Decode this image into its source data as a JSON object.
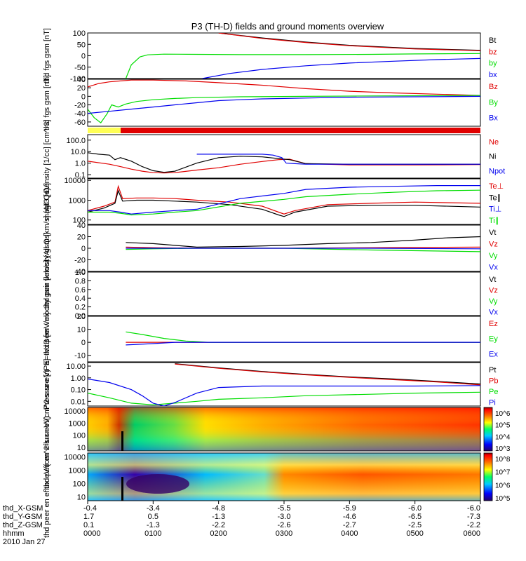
{
  "figure": {
    "title": "P3 (TH-D) fields and ground moments overview"
  },
  "colors": {
    "black": "#000000",
    "red": "#e00000",
    "green": "#00dd00",
    "blue": "#0000ee",
    "yellow": "#ffff55"
  },
  "chart_data": [
    {
      "type": "line",
      "panel": "fgs_gsm",
      "ylabel": "thd fgs gsm [nT]",
      "ylim": [
        -100,
        100
      ],
      "yticks": [
        "100",
        "50",
        "0",
        "-50",
        "-100"
      ],
      "series": [
        {
          "name": "Bt",
          "color": "black",
          "x": [
            120,
            160,
            200,
            240,
            300,
            360
          ],
          "y": [
            100,
            78,
            60,
            46,
            32,
            24
          ]
        },
        {
          "name": "bz",
          "color": "red",
          "x": [
            120,
            160,
            200,
            240,
            300,
            360
          ],
          "y": [
            100,
            76,
            58,
            44,
            30,
            22
          ]
        },
        {
          "name": "by",
          "color": "green",
          "x": [
            35,
            40,
            48,
            55,
            70,
            100,
            140,
            200,
            260,
            300,
            360
          ],
          "y": [
            -100,
            -40,
            -5,
            4,
            7,
            6,
            5,
            5,
            6,
            8,
            10
          ]
        },
        {
          "name": "bx",
          "color": "blue",
          "x": [
            105,
            130,
            160,
            200,
            240,
            280,
            320,
            360
          ],
          "y": [
            -100,
            -78,
            -60,
            -44,
            -32,
            -24,
            -17,
            -12
          ]
        }
      ]
    },
    {
      "type": "line",
      "panel": "fgs_gsm_zoom",
      "ylabel": "thd fgs gsm [nT]",
      "ylim": [
        -70,
        40
      ],
      "yticks": [
        "40",
        "20",
        "0",
        "-20",
        "-40",
        "-60"
      ],
      "series": [
        {
          "name": "Bz",
          "color": "red",
          "x": [
            0,
            10,
            20,
            30,
            40,
            60,
            90,
            120,
            160,
            200,
            240,
            280,
            320,
            360
          ],
          "y": [
            22,
            30,
            34,
            36,
            38,
            38,
            36,
            32,
            26,
            18,
            12,
            8,
            5,
            2
          ]
        },
        {
          "name": "By",
          "color": "green",
          "x": [
            0,
            6,
            12,
            18,
            22,
            28,
            35,
            45,
            60,
            80,
            100,
            140,
            200,
            260,
            360
          ],
          "y": [
            -30,
            -50,
            -62,
            -40,
            -20,
            -25,
            -18,
            -12,
            -8,
            -5,
            -3,
            -1,
            0,
            1,
            2
          ]
        },
        {
          "name": "Bx",
          "color": "blue",
          "x": [
            0,
            20,
            40,
            60,
            80,
            100,
            120,
            140,
            160,
            200,
            240,
            300,
            360
          ],
          "y": [
            -40,
            -35,
            -30,
            -25,
            -20,
            -15,
            -10,
            -8,
            -6,
            -4,
            -2,
            -1,
            0
          ]
        }
      ]
    },
    {
      "type": "line",
      "panel": "density",
      "ylabel": "Density [1/cc] [cm^-3]",
      "ylog": true,
      "ylim": [
        0.05,
        300
      ],
      "yticks": [
        "100.0",
        "10.0",
        "1.0",
        "0.1"
      ],
      "series": [
        {
          "name": "Ne",
          "color": "red",
          "x": [
            0,
            20,
            30,
            40,
            50,
            60,
            70,
            80,
            100,
            120,
            140,
            160,
            175,
            185,
            200,
            240,
            300,
            360
          ],
          "y": [
            1.5,
            0.8,
            0.5,
            0.3,
            0.2,
            0.15,
            0.14,
            0.15,
            0.25,
            0.4,
            0.8,
            1.4,
            2.0,
            2.2,
            0.9,
            0.7,
            0.7,
            0.75
          ]
        },
        {
          "name": "Ni",
          "color": "black",
          "x": [
            0,
            10,
            20,
            25,
            30,
            40,
            50,
            60,
            70,
            80,
            100,
            120,
            140,
            160,
            175,
            185,
            200,
            240,
            300,
            360
          ],
          "y": [
            8,
            6,
            5,
            2,
            3,
            1.5,
            0.5,
            0.22,
            0.16,
            0.2,
            1,
            3,
            4,
            3.5,
            2.5,
            2,
            0.9,
            0.8,
            0.8,
            0.8
          ]
        },
        {
          "name": "Npot",
          "color": "blue",
          "x": [
            100,
            120,
            140,
            160,
            170,
            178,
            182,
            190,
            200,
            240,
            300,
            360
          ],
          "y": [
            6,
            6,
            6,
            6,
            5,
            3,
            1,
            0.9,
            0.8,
            0.8,
            0.8,
            0.8
          ]
        }
      ]
    },
    {
      "type": "line",
      "panel": "temperature",
      "ylabel": "magt3 [eV]",
      "ylog": true,
      "ylim": [
        60,
        12000
      ],
      "yticks": [
        "10000",
        "1000",
        "100"
      ],
      "series": [
        {
          "name": "Te⊥",
          "color": "red",
          "x": [
            0,
            15,
            25,
            28,
            32,
            45,
            60,
            80,
            100,
            130,
            160,
            175,
            180,
            190,
            220,
            260,
            300,
            360
          ],
          "y": [
            300,
            500,
            800,
            5000,
            1200,
            1300,
            1300,
            1200,
            1000,
            800,
            500,
            250,
            200,
            300,
            600,
            700,
            800,
            700
          ]
        },
        {
          "name": "Te∥",
          "color": "black",
          "x": [
            0,
            15,
            25,
            28,
            32,
            45,
            60,
            80,
            100,
            130,
            160,
            175,
            180,
            190,
            220,
            260,
            300,
            360
          ],
          "y": [
            250,
            400,
            700,
            3000,
            900,
            1000,
            1000,
            900,
            800,
            600,
            350,
            180,
            150,
            250,
            500,
            550,
            550,
            450
          ]
        },
        {
          "name": "Ti⊥",
          "color": "blue",
          "x": [
            0,
            20,
            30,
            40,
            60,
            80,
            100,
            140,
            180,
            200,
            240,
            280,
            320,
            360
          ],
          "y": [
            300,
            300,
            250,
            200,
            250,
            300,
            350,
            1200,
            2200,
            3500,
            4500,
            5000,
            5500,
            5500
          ]
        },
        {
          "name": "Ti∥",
          "color": "green",
          "x": [
            0,
            20,
            30,
            40,
            60,
            80,
            100,
            140,
            180,
            200,
            240,
            280,
            320,
            360
          ],
          "y": [
            250,
            250,
            220,
            180,
            200,
            250,
            300,
            700,
            1100,
            1500,
            2000,
            2500,
            3000,
            3200
          ]
        }
      ]
    },
    {
      "type": "line",
      "panel": "peir_velocity",
      "ylabel": "thd peir velocity gsm [km/s] (All Qs)",
      "ylim": [
        -40,
        40
      ],
      "yticks": [
        "40",
        "20",
        "0",
        "-20",
        "-40"
      ],
      "series": [
        {
          "name": "Vt",
          "color": "black",
          "x": [
            35,
            60,
            80,
            100,
            140,
            180,
            220,
            260,
            300,
            330,
            360
          ],
          "y": [
            10,
            8,
            5,
            2,
            3,
            5,
            8,
            10,
            14,
            18,
            20
          ]
        },
        {
          "name": "Vz",
          "color": "red",
          "x": [
            35,
            60,
            100,
            180,
            260,
            360
          ],
          "y": [
            2,
            1,
            0,
            0,
            1,
            2
          ]
        },
        {
          "name": "Vy",
          "color": "green",
          "x": [
            35,
            60,
            100,
            180,
            260,
            360
          ],
          "y": [
            -2,
            -1,
            0,
            0,
            -3,
            -6
          ]
        },
        {
          "name": "Vx",
          "color": "blue",
          "x": [
            35,
            60,
            100,
            180,
            260,
            360
          ],
          "y": [
            0,
            0,
            0,
            0,
            0,
            -1
          ]
        }
      ]
    },
    {
      "type": "line",
      "panel": "peer_velocity",
      "ylabel": "thd peer velocity gsm [km/s] (All Qs)",
      "ylim": [
        0,
        1
      ],
      "yticks": [
        "1.0",
        "0.8",
        "0.6",
        "0.4",
        "0.2",
        "0.0"
      ],
      "series": [
        {
          "name": "Vt",
          "color": "black",
          "x": [],
          "y": []
        },
        {
          "name": "Vz",
          "color": "red",
          "x": [],
          "y": []
        },
        {
          "name": "Vy",
          "color": "green",
          "x": [],
          "y": []
        },
        {
          "name": "Vx",
          "color": "blue",
          "x": [],
          "y": []
        }
      ]
    },
    {
      "type": "line",
      "panel": "efield",
      "ylabel": "E=-VxB [mV/m]",
      "ylim": [
        -15,
        20
      ],
      "yticks": [
        "20",
        "10",
        "0",
        "-10"
      ],
      "series": [
        {
          "name": "Ez",
          "color": "red",
          "x": [
            35,
            60,
            80,
            100,
            360
          ],
          "y": [
            0,
            0,
            0,
            0,
            0
          ]
        },
        {
          "name": "Ey",
          "color": "green",
          "x": [
            35,
            50,
            70,
            90,
            110,
            360
          ],
          "y": [
            8,
            6,
            3,
            1,
            0,
            0
          ]
        },
        {
          "name": "Ex",
          "color": "blue",
          "x": [
            35,
            60,
            80,
            100,
            360
          ],
          "y": [
            -2,
            -1,
            0,
            0,
            0
          ]
        }
      ]
    },
    {
      "type": "line",
      "panel": "pressure",
      "ylabel": "Pressure [nPa]",
      "ylog": true,
      "ylim": [
        0.004,
        20
      ],
      "yticks": [
        "10.00",
        "1.00",
        "0.10",
        "0.01"
      ],
      "series": [
        {
          "name": "Pt",
          "color": "black",
          "x": [
            80,
            120,
            160,
            200,
            240,
            280,
            320,
            360
          ],
          "y": [
            16,
            7,
            3.5,
            2,
            1.2,
            0.8,
            0.5,
            0.3
          ]
        },
        {
          "name": "Pb",
          "color": "red",
          "x": [
            80,
            120,
            160,
            200,
            240,
            280,
            320,
            360
          ],
          "y": [
            15,
            6.5,
            3.2,
            1.8,
            1.1,
            0.7,
            0.45,
            0.25
          ]
        },
        {
          "name": "Pe",
          "color": "green",
          "x": [
            0,
            20,
            40,
            60,
            80,
            100,
            120,
            160,
            200,
            260,
            300,
            360
          ],
          "y": [
            0.05,
            0.02,
            0.007,
            0.005,
            0.007,
            0.01,
            0.015,
            0.02,
            0.03,
            0.04,
            0.05,
            0.06
          ]
        },
        {
          "name": "Pi",
          "color": "blue",
          "x": [
            0,
            20,
            40,
            50,
            60,
            70,
            80,
            100,
            120,
            160,
            200,
            260,
            300,
            360
          ],
          "y": [
            0.8,
            0.4,
            0.1,
            0.03,
            0.007,
            0.004,
            0.008,
            0.05,
            0.15,
            0.2,
            0.2,
            0.2,
            0.2,
            0.22
          ]
        }
      ]
    },
    {
      "type": "heatmap",
      "panel": "peir_spectrogram",
      "ylabel": "thd peir en eflux eV/(cm^2-s-sr-eV)",
      "ylog": true,
      "ylim": [
        5,
        20000
      ],
      "yticks": [
        "10000",
        "1000",
        "100",
        "10"
      ],
      "colorbar": {
        "ticks": [
          "10^6",
          "10^5",
          "10^4",
          "10^3"
        ]
      }
    },
    {
      "type": "heatmap",
      "panel": "peer_spectrogram",
      "ylabel": "thd peer en eflux eV/(cm^2-s-sr-eV)",
      "ylog": true,
      "ylim": [
        5,
        20000
      ],
      "yticks": [
        "10000",
        "1000",
        "100",
        "10"
      ],
      "colorbar": {
        "ticks": [
          "10^8",
          "10^7",
          "10^6",
          "10^5"
        ]
      }
    }
  ],
  "time_axis": {
    "row_labels": [
      "thd_X-GSM",
      "thd_Y-GSM",
      "thd_Z-GSM",
      "hhmm",
      "2010 Jan 27"
    ],
    "ticks": [
      {
        "x": "-0.4",
        "y": "1.7",
        "z": "0.1",
        "hhmm": "0000"
      },
      {
        "x": "-3.4",
        "y": "0.5",
        "z": "-1.3",
        "hhmm": "0100"
      },
      {
        "x": "-4.8",
        "y": "-1.3",
        "z": "-2.2",
        "hhmm": "0200"
      },
      {
        "x": "-5.5",
        "y": "-3.0",
        "z": "-2.6",
        "hhmm": "0300"
      },
      {
        "x": "-5.9",
        "y": "-4.6",
        "z": "-2.7",
        "hhmm": "0400"
      },
      {
        "x": "-6.0",
        "y": "-6.5",
        "z": "-2.5",
        "hhmm": "0500"
      },
      {
        "x": "-6.0",
        "y": "-7.3",
        "z": "-2.2",
        "hhmm": "0600"
      }
    ]
  }
}
